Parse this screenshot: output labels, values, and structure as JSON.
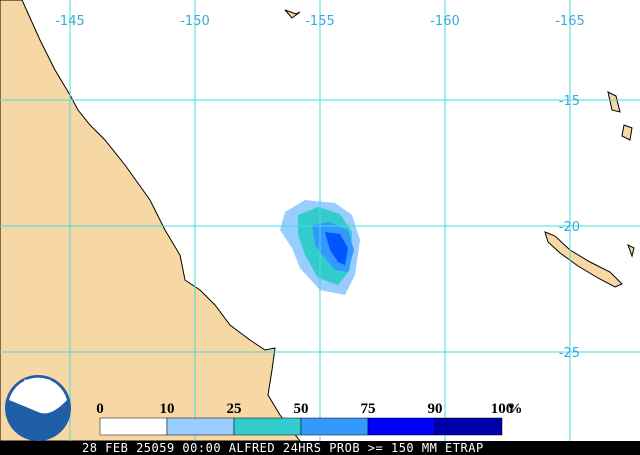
{
  "map": {
    "lon_labels": [
      "-145",
      "-150",
      "-155",
      "-160",
      "-165"
    ],
    "lat_labels": [
      "-15",
      "-20",
      "-25"
    ],
    "legend": {
      "labels": [
        "0",
        "10",
        "25",
        "50",
        "75",
        "90",
        "100"
      ],
      "unit": "%"
    },
    "logo": "NOAA",
    "caption": "28 FEB 25059 00:00 ALFRED 24HRS PROB >= 150 MM ETRAP"
  }
}
